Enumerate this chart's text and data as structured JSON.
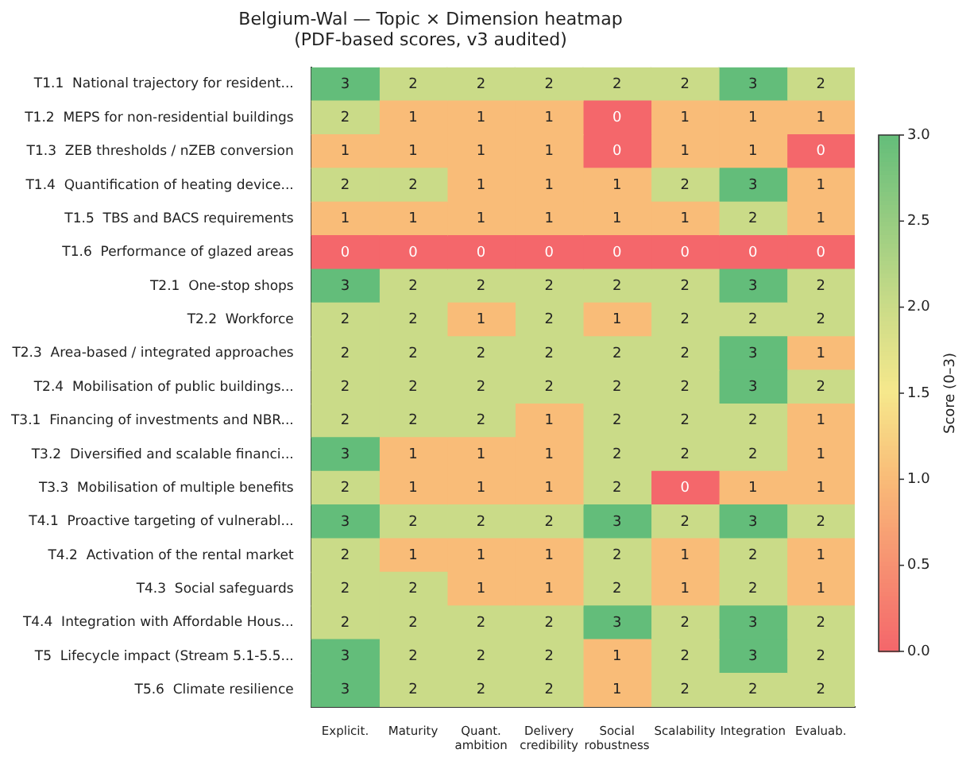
{
  "chart_data": {
    "type": "heatmap",
    "title": "Belgium-Wal — Topic × Dimension heatmap",
    "subtitle": "(PDF-based scores, v3 audited)",
    "categories": [
      "Explicit.",
      "Maturity",
      "Quant. ambition",
      "Delivery credibility",
      "Social robustness",
      "Scalability",
      "Integration",
      "Evaluab."
    ],
    "y_categories": [
      "T1.1  National trajectory for resident...",
      "T1.2  MEPS for non-residential buildings",
      "T1.3  ZEB thresholds / nZEB conversion",
      "T1.4  Quantification of heating device...",
      "T1.5  TBS and BACS requirements",
      "T1.6  Performance of glazed areas",
      "T2.1  One-stop shops",
      "T2.2  Workforce",
      "T2.3  Area-based / integrated approaches",
      "T2.4  Mobilisation of public buildings...",
      "T3.1  Financing of investments and NBR...",
      "T3.2  Diversified and scalable financi...",
      "T3.3  Mobilisation of multiple benefits",
      "T4.1  Proactive targeting of vulnerabl...",
      "T4.2  Activation of the rental market",
      "T4.3  Social safeguards",
      "T4.4  Integration with Affordable Hous...",
      "T5  Lifecycle impact (Stream 5.1-5.5...",
      "T5.6  Climate resilience"
    ],
    "cells": [
      [
        3,
        2,
        2,
        2,
        2,
        2,
        3,
        2
      ],
      [
        2,
        1,
        1,
        1,
        0,
        1,
        1,
        1
      ],
      [
        1,
        1,
        1,
        1,
        0,
        1,
        1,
        0
      ],
      [
        2,
        2,
        1,
        1,
        1,
        2,
        3,
        1
      ],
      [
        1,
        1,
        1,
        1,
        1,
        1,
        2,
        1
      ],
      [
        0,
        0,
        0,
        0,
        0,
        0,
        0,
        0
      ],
      [
        3,
        2,
        2,
        2,
        2,
        2,
        3,
        2
      ],
      [
        2,
        2,
        1,
        2,
        1,
        2,
        2,
        2
      ],
      [
        2,
        2,
        2,
        2,
        2,
        2,
        3,
        1
      ],
      [
        2,
        2,
        2,
        2,
        2,
        2,
        3,
        2
      ],
      [
        2,
        2,
        2,
        1,
        2,
        2,
        2,
        1
      ],
      [
        3,
        1,
        1,
        1,
        2,
        2,
        2,
        1
      ],
      [
        2,
        1,
        1,
        1,
        2,
        0,
        1,
        1
      ],
      [
        3,
        2,
        2,
        2,
        3,
        2,
        3,
        2
      ],
      [
        2,
        1,
        1,
        1,
        2,
        1,
        2,
        1
      ],
      [
        2,
        2,
        1,
        1,
        2,
        1,
        2,
        1
      ],
      [
        2,
        2,
        2,
        2,
        3,
        2,
        3,
        2
      ],
      [
        3,
        2,
        2,
        2,
        1,
        2,
        3,
        2
      ],
      [
        3,
        2,
        2,
        2,
        1,
        2,
        2,
        2
      ]
    ],
    "data_labels": true,
    "clim": [
      0,
      3
    ],
    "cticks": [
      {
        "value": 0,
        "label": "0.0"
      },
      {
        "value": 0.5,
        "label": "0.5"
      },
      {
        "value": 1,
        "label": "1.0"
      },
      {
        "value": 1.5,
        "label": "1.5"
      },
      {
        "value": 2,
        "label": "2.0"
      },
      {
        "value": 2.5,
        "label": "2.5"
      },
      {
        "value": 3,
        "label": "3.0"
      }
    ],
    "clabel": "Score (0–3)"
  }
}
